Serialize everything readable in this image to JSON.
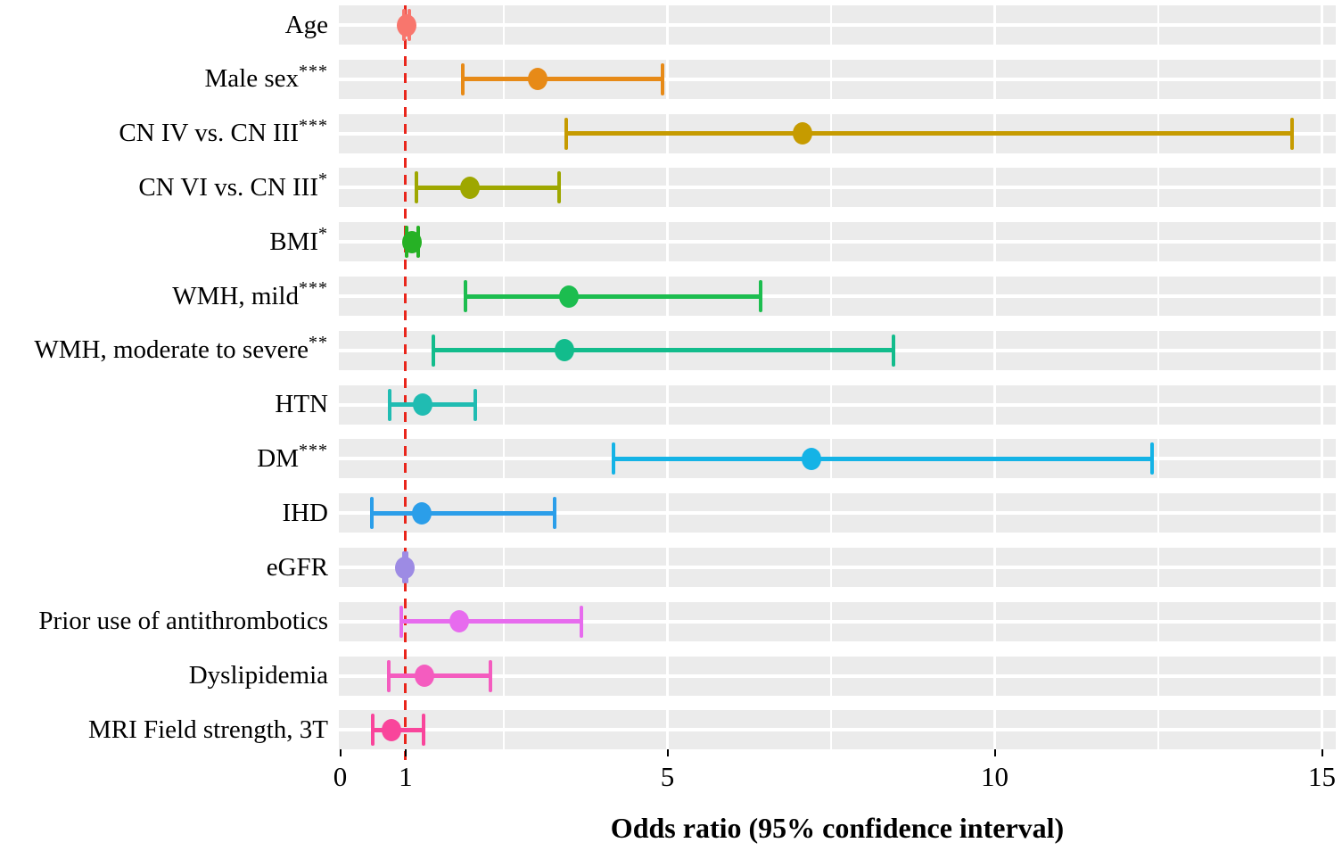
{
  "chart_data": {
    "type": "scatter",
    "subtype": "forest-plot",
    "title": "",
    "xlabel": "Odds ratio (95% confidence interval)",
    "ylabel": "",
    "xlim": [
      0,
      15.25
    ],
    "x_ticks": [
      0,
      1,
      5,
      10,
      15
    ],
    "grid": {
      "panel_background": "#EBEBEB",
      "gridline_color": "#FFFFFF",
      "minor_x": [
        2.5,
        7.5,
        12.5
      ],
      "major_x": [
        5,
        10,
        15
      ]
    },
    "reference_line": {
      "x": 1,
      "style": "dashed",
      "color": "#E9261C"
    },
    "legend": "none",
    "rows": [
      {
        "label": "Age",
        "significance": "",
        "or": 1.01,
        "ci_low": 0.97,
        "ci_high": 1.06,
        "color": "#F8766D"
      },
      {
        "label": "Male sex",
        "significance": "***",
        "or": 3.02,
        "ci_low": 1.87,
        "ci_high": 4.92,
        "color": "#E78A17"
      },
      {
        "label": "CN IV vs. CN III",
        "significance": "***",
        "or": 7.07,
        "ci_low": 3.46,
        "ci_high": 14.54,
        "color": "#C69B00"
      },
      {
        "label": "CN VI vs. CN III",
        "significance": "*",
        "or": 1.98,
        "ci_low": 1.17,
        "ci_high": 3.35,
        "color": "#9EA700"
      },
      {
        "label": "BMI",
        "significance": "*",
        "or": 1.09,
        "ci_low": 1.01,
        "ci_high": 1.19,
        "color": "#26B125"
      },
      {
        "label": "WMH, mild",
        "significance": "***",
        "or": 3.49,
        "ci_low": 1.91,
        "ci_high": 6.42,
        "color": "#1CBD4F"
      },
      {
        "label": "WMH, moderate to severe",
        "significance": "**",
        "or": 3.43,
        "ci_low": 1.43,
        "ci_high": 8.46,
        "color": "#12BC8C"
      },
      {
        "label": "HTN",
        "significance": "",
        "or": 1.26,
        "ci_low": 0.76,
        "ci_high": 2.06,
        "color": "#20BCB2"
      },
      {
        "label": "DM",
        "significance": "***",
        "or": 7.2,
        "ci_low": 4.18,
        "ci_high": 12.41,
        "color": "#14B3E6"
      },
      {
        "label": "IHD",
        "significance": "",
        "or": 1.25,
        "ci_low": 0.49,
        "ci_high": 3.27,
        "color": "#2B9EE9"
      },
      {
        "label": "eGFR",
        "significance": "",
        "or": 0.99,
        "ci_low": 0.97,
        "ci_high": 1.02,
        "color": "#9D8BE4"
      },
      {
        "label": "Prior use of antithrombotics",
        "significance": "",
        "or": 1.82,
        "ci_low": 0.93,
        "ci_high": 3.68,
        "color": "#E76BEE"
      },
      {
        "label": "Dyslipidemia",
        "significance": "",
        "or": 1.29,
        "ci_low": 0.74,
        "ci_high": 2.3,
        "color": "#F45CBF"
      },
      {
        "label": "MRI Field strength, 3T",
        "significance": "",
        "or": 0.79,
        "ci_low": 0.5,
        "ci_high": 1.28,
        "color": "#F9459B"
      }
    ]
  }
}
